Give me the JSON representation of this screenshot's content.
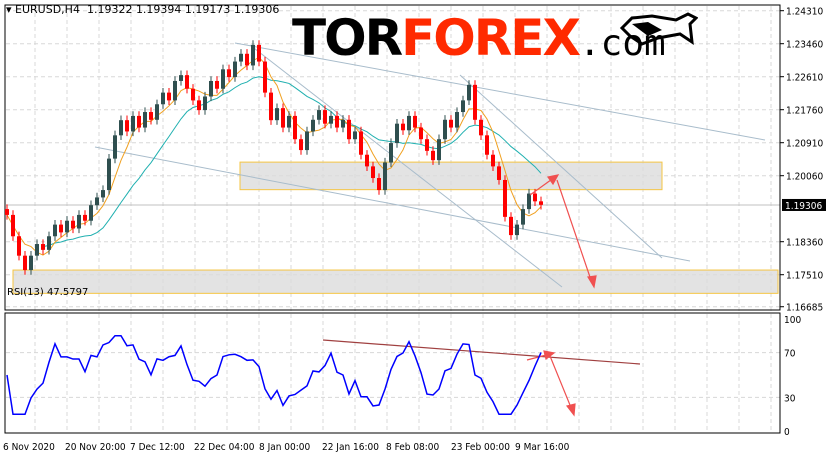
{
  "header": {
    "symbol": "EURUSD,H4",
    "ohlc": "1.19322 1.19394 1.19173 1.19306"
  },
  "logo": {
    "part1": "TOR",
    "part2": "FOREX",
    "part3": ".com"
  },
  "rsi_label": "RSI(13) 47.5797",
  "colors": {
    "bull": "#2f4f4f",
    "bear": "#ff0000",
    "ma_fast": "#f0a020",
    "ma_slow": "#20b0b0",
    "rsi": "#0000ff",
    "zone_border": "#f5c542",
    "zone_fill": "#dcdcdc",
    "arrow": "#f05050",
    "trend": "#a0b4c8"
  },
  "chart_data": [
    {
      "type": "candlestick",
      "title": "EURUSD,H4",
      "ylim": [
        1.16685,
        1.2431
      ],
      "yticks": [
        "1.24310",
        "1.23460",
        "1.22610",
        "1.21760",
        "1.20910",
        "1.20060",
        "1.18360",
        "1.17510",
        "1.16685"
      ],
      "last_price": "1.19306",
      "xticks": [
        "6 Nov 2020",
        "20 Nov 20:00",
        "7 Dec 12:00",
        "22 Dec 04:00",
        "8 Jan 00:00",
        "22 Jan 16:00",
        "8 Feb 08:00",
        "23 Feb 00:00",
        "9 Mar 16:00"
      ],
      "closes": [
        1.1905,
        1.185,
        1.18,
        1.1763,
        1.18,
        1.183,
        1.1815,
        1.185,
        1.188,
        1.186,
        1.189,
        1.187,
        1.1905,
        1.189,
        1.193,
        1.195,
        1.1969,
        1.205,
        1.211,
        1.2149,
        1.212,
        1.216,
        1.213,
        1.217,
        1.215,
        1.219,
        1.222,
        1.22,
        1.225,
        1.2265,
        1.223,
        1.22,
        1.2175,
        1.221,
        1.225,
        1.223,
        1.228,
        1.226,
        1.23,
        1.232,
        1.229,
        1.2343,
        1.23,
        1.222,
        1.2149,
        1.218,
        1.213,
        1.216,
        1.21,
        1.2072,
        1.212,
        1.215,
        1.2175,
        1.214,
        1.216,
        1.213,
        1.215,
        1.21,
        1.212,
        1.206,
        1.203,
        1.2,
        1.1969,
        1.204,
        1.209,
        1.214,
        1.2123,
        1.216,
        1.213,
        1.21,
        1.207,
        1.2046,
        1.21,
        1.215,
        1.213,
        1.217,
        1.22,
        1.224,
        1.215,
        1.211,
        1.206,
        1.203,
        1.1995,
        1.19,
        1.1853,
        1.188,
        1.192,
        1.196,
        1.194,
        1.1931
      ],
      "zones": [
        [
          1.197,
          1.2041
        ],
        [
          1.1703,
          1.1763
        ]
      ]
    },
    {
      "type": "line",
      "title": "RSI(13)",
      "ylim": [
        0,
        100
      ],
      "yticks": [
        "100",
        "70",
        "30",
        "0"
      ]
    }
  ]
}
